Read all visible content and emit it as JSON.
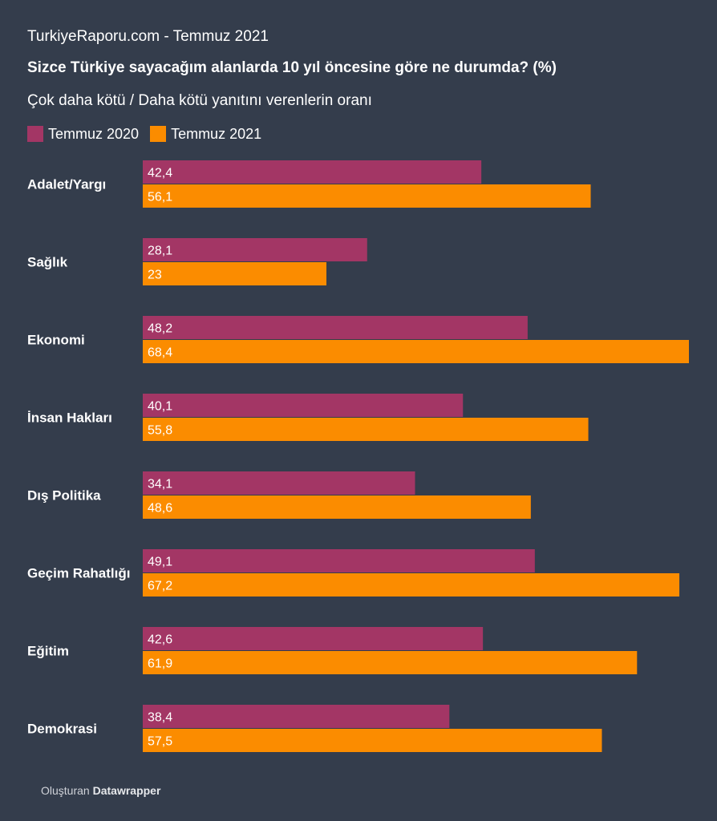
{
  "header": {
    "source": "TurkiyeRaporu.com - Temmuz 2021",
    "title": "Sizce Türkiye sayacağım alanlarda 10 yıl öncesine göre ne durumda? (%)",
    "subtitle": "Çok daha kötü / Daha kötü yanıtını verenlerin oranı"
  },
  "legend": [
    {
      "label": "Temmuz 2020",
      "color": "#a33665"
    },
    {
      "label": "Temmuz 2021",
      "color": "#fb8c00"
    }
  ],
  "footer": {
    "prefix": "Oluşturan",
    "brand": "Datawrapper"
  },
  "chart_data": {
    "type": "bar",
    "orientation": "horizontal",
    "title": "Sizce Türkiye sayacağım alanlarda 10 yıl öncesine göre ne durumda? (%)",
    "subtitle": "Çok daha kötü / Daha kötü yanıtını verenlerin oranı",
    "categories": [
      "Adalet/Yargı",
      "Sağlık",
      "Ekonomi",
      "İnsan Hakları",
      "Dış Politika",
      "Geçim Rahatlığı",
      "Eğitim",
      "Demokrasi"
    ],
    "series": [
      {
        "name": "Temmuz 2020",
        "color": "#a33665",
        "values": [
          42.4,
          28.1,
          48.2,
          40.1,
          34.1,
          49.1,
          42.6,
          38.4
        ],
        "labels": [
          "42,4",
          "28,1",
          "48,2",
          "40,1",
          "34,1",
          "49,1",
          "42,6",
          "38,4"
        ]
      },
      {
        "name": "Temmuz 2021",
        "color": "#fb8c00",
        "values": [
          56.1,
          23,
          68.4,
          55.8,
          48.6,
          67.2,
          61.9,
          57.5
        ],
        "labels": [
          "56,1",
          "23",
          "68,4",
          "55,8",
          "48,6",
          "67,2",
          "61,9",
          "57,5"
        ]
      }
    ],
    "xlim": [
      0,
      68.4
    ],
    "grid": false,
    "legend_position": "top-left"
  }
}
